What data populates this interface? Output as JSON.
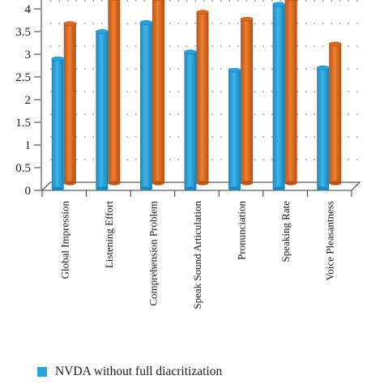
{
  "chart_data": {
    "type": "bar",
    "categories": [
      "Global Impression",
      "Listening Effort",
      "Comprehension Problem",
      "Speak Sound Articulation",
      "Pronunciation",
      "Speaking Rate",
      "Voice Pleasantness"
    ],
    "series": [
      {
        "name": "NVDA without full diacritization",
        "values": [
          2.9,
          3.5,
          3.7,
          3.05,
          2.65,
          4.1,
          2.7
        ],
        "color": "#29a3dc"
      },
      {
        "values": [
          3.55,
          4.1,
          4.1,
          3.8,
          3.65,
          4.1,
          3.1
        ],
        "color": "#d96a1e"
      }
    ],
    "y_ticks": [
      "0",
      "0.5",
      "1",
      "1.5",
      "2",
      "2.5",
      "3",
      "3.5",
      "4"
    ],
    "ylim": [
      0,
      4
    ],
    "grid": "dotted",
    "legend_position": "bottom"
  }
}
